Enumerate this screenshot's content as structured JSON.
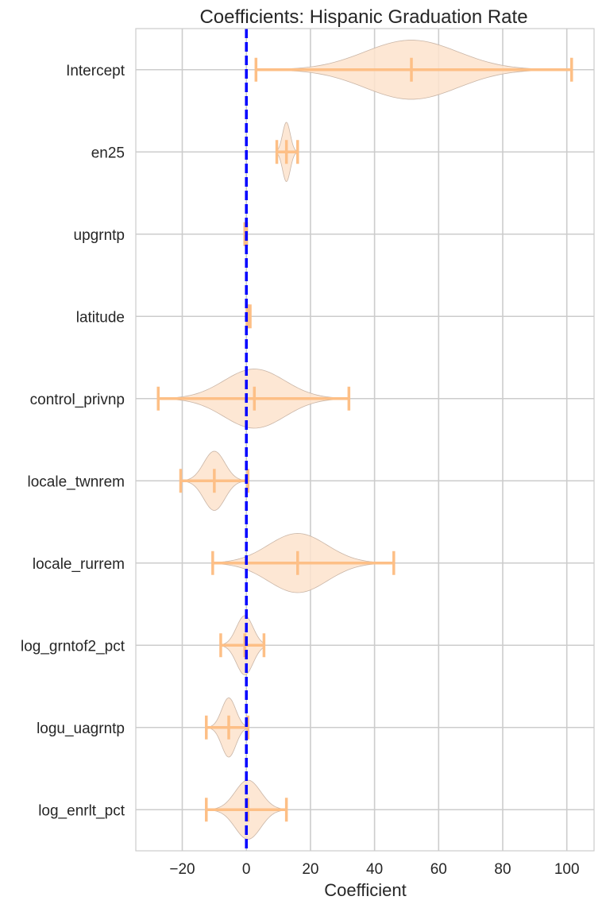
{
  "chart_data": {
    "type": "violin",
    "title": "Coefficients: Hispanic Graduation Rate",
    "xlabel": "Coefficient",
    "ylabel": "",
    "xlim": [
      -34.5,
      108.5
    ],
    "xticks": [
      -20,
      0,
      20,
      40,
      60,
      80,
      100
    ],
    "xtick_labels": [
      "−20",
      "0",
      "20",
      "40",
      "60",
      "80",
      "100"
    ],
    "grid": true,
    "reference_line": {
      "x": 0,
      "style": "dashed",
      "color": "#0000ff"
    },
    "colors": {
      "violin_fill": "#fde3cc",
      "violin_edge": "#c9b5a6",
      "whisker": "#fdbf86",
      "grid": "#cccccc"
    },
    "categories": [
      "Intercept",
      "en25",
      "upgrntp",
      "latitude",
      "control_privnp",
      "locale_twnrem",
      "locale_rurrem",
      "log_grntof2_pct",
      "logu_uagrntp",
      "log_enrlt_pct"
    ],
    "series": [
      {
        "category": "Intercept",
        "min": 3,
        "median": 51.5,
        "max": 101.5,
        "sd": 14.5,
        "max_halfwidth": 0.36
      },
      {
        "category": "en25",
        "min": 9.5,
        "median": 12.5,
        "max": 16,
        "sd": 1.2,
        "max_halfwidth": 0.36
      },
      {
        "category": "upgrntp",
        "min": -0.5,
        "median": -0.2,
        "max": 0.1,
        "sd": 0.1,
        "max_halfwidth": 0.1
      },
      {
        "category": "latitude",
        "min": 0.2,
        "median": 0.6,
        "max": 1.2,
        "sd": 0.2,
        "max_halfwidth": 0.1
      },
      {
        "category": "control_privnp",
        "min": -27.5,
        "median": 2.5,
        "max": 32,
        "sd": 9.5,
        "max_halfwidth": 0.36
      },
      {
        "category": "locale_twnrem",
        "min": -20.5,
        "median": -10,
        "max": 0.5,
        "sd": 3.3,
        "max_halfwidth": 0.36
      },
      {
        "category": "locale_rurrem",
        "min": -10.5,
        "median": 16,
        "max": 46,
        "sd": 9.2,
        "max_halfwidth": 0.36
      },
      {
        "category": "log_grntof2_pct",
        "min": -8,
        "median": -0.5,
        "max": 5.5,
        "sd": 2.6,
        "max_halfwidth": 0.36
      },
      {
        "category": "logu_uagrntp",
        "min": -12.5,
        "median": -5.5,
        "max": 0.5,
        "sd": 2.2,
        "max_halfwidth": 0.36
      },
      {
        "category": "log_enrlt_pct",
        "min": -12.5,
        "median": 0.5,
        "max": 12.5,
        "sd": 4,
        "max_halfwidth": 0.36
      }
    ]
  }
}
